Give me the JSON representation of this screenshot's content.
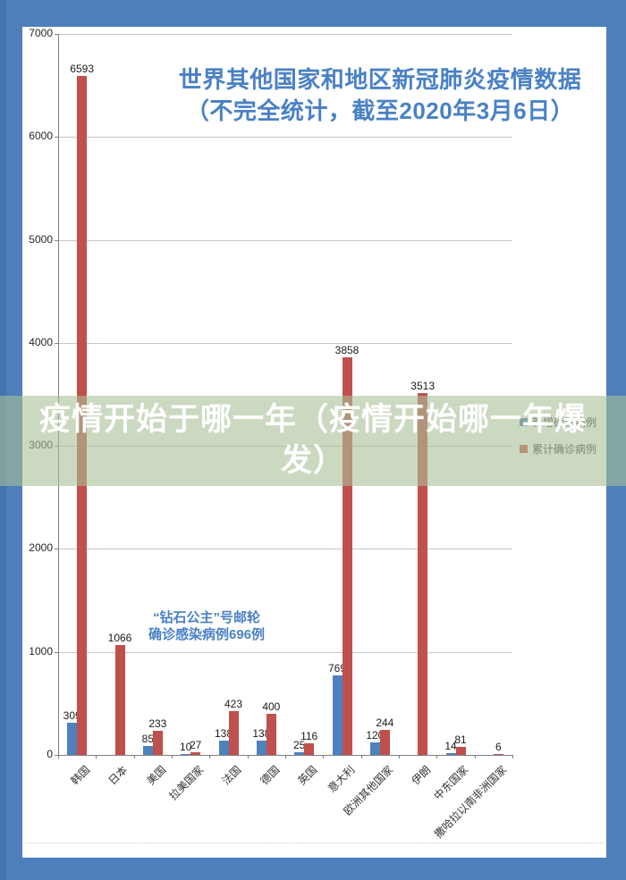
{
  "page": {
    "background_color": "#4d7fba",
    "left_strip_color": "#4474ae",
    "overlay": {
      "text": "疫情开始于哪一年（疫情开始哪一年爆发）",
      "lines": [
        "疫情开始于哪一年（疫情开始哪一年爆",
        "发）"
      ],
      "text_color": "#ffffff",
      "band_color": "rgba(170,192,151,0.6)"
    }
  },
  "chart_data": {
    "type": "bar",
    "title": "世界其他国家和地区新冠肺炎疫情数据（不完全统计，截至2020年3月6日）",
    "title_lines": [
      "世界其他国家和地区新冠肺炎疫情数据",
      "（不完全统计，截至2020年3月6日）"
    ],
    "title_color": "#4a81c6",
    "categories": [
      "韩国",
      "日本",
      "美国",
      "拉美国家",
      "法国",
      "德国",
      "英国",
      "意大利",
      "欧洲其他国家",
      "伊朗",
      "中东国家",
      "撒哈拉以南非洲国家"
    ],
    "series": [
      {
        "name": "新增确诊病例",
        "color": "#4f81bd",
        "values": [
          309,
          null,
          85,
          10,
          138,
          138,
          25,
          769,
          120,
          null,
          14,
          null
        ]
      },
      {
        "name": "累计确诊病例",
        "color": "#c0504d",
        "values": [
          6593,
          1066,
          233,
          27,
          423,
          400,
          116,
          3858,
          244,
          3513,
          81,
          6
        ]
      }
    ],
    "xlabel": "",
    "ylabel": "",
    "ylim": [
      0,
      7000
    ],
    "yticks": [
      0,
      1000,
      2000,
      3000,
      4000,
      5000,
      6000,
      7000
    ],
    "grid": true,
    "legend_position": "right",
    "annotation": {
      "lines": [
        "“钻石公主”号邮轮",
        "确诊感染病例696例"
      ],
      "color": "#4a81c6"
    }
  }
}
